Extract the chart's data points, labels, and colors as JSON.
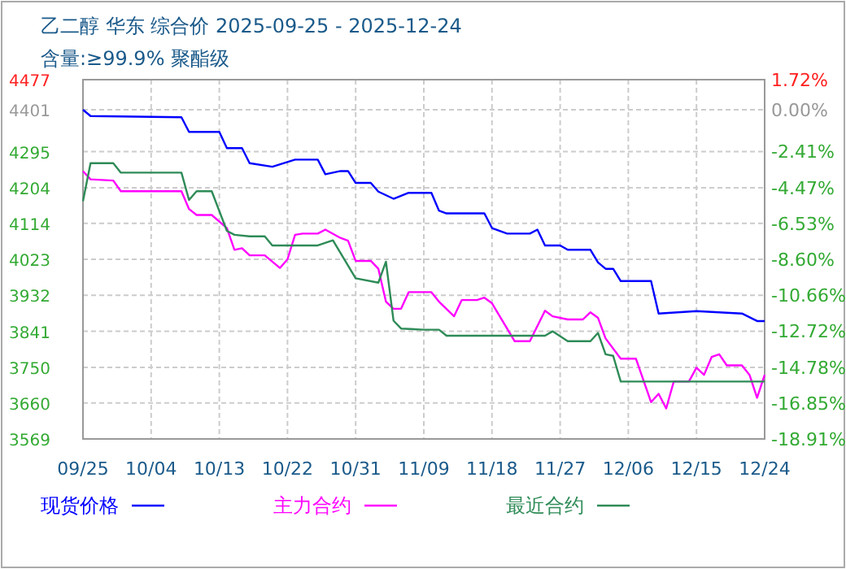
{
  "chart_data": {
    "type": "line",
    "title": "乙二醇 华东 综合价 2025-09-25 - 2025-12-24",
    "subtitle": "含量:≥99.9% 聚酯级",
    "xlim": [
      "2025-09-25",
      "2025-12-24"
    ],
    "xticks": [
      {
        "value": "2025-09-25",
        "label": "09/25"
      },
      {
        "value": "2025-10-04",
        "label": "10/04"
      },
      {
        "value": "2025-10-13",
        "label": "10/13"
      },
      {
        "value": "2025-10-22",
        "label": "10/22"
      },
      {
        "value": "2025-10-31",
        "label": "10/31"
      },
      {
        "value": "2025-11-09",
        "label": "11/09"
      },
      {
        "value": "2025-11-18",
        "label": "11/18"
      },
      {
        "value": "2025-11-27",
        "label": "11/27"
      },
      {
        "value": "2025-12-06",
        "label": "12/06"
      },
      {
        "value": "2025-12-15",
        "label": "12/15"
      },
      {
        "value": "2025-12-24",
        "label": "12/24"
      }
    ],
    "ylim": [
      3569,
      4477
    ],
    "yticks": [
      4477,
      4401,
      4295,
      4204,
      4114,
      4023,
      3932,
      3841,
      3750,
      3660,
      3569
    ],
    "y2lim": [
      -18.91,
      1.72
    ],
    "y2ticks": [
      {
        "value": 1.72,
        "label": "1.72%"
      },
      {
        "value": 0,
        "label": "0.00%"
      },
      {
        "value": -2.41,
        "label": "-2.41%"
      },
      {
        "value": -4.47,
        "label": "-4.47%"
      },
      {
        "value": -6.53,
        "label": "-6.53%"
      },
      {
        "value": -8.6,
        "label": "-8.60%"
      },
      {
        "value": -10.66,
        "label": "-10.66%"
      },
      {
        "value": -12.72,
        "label": "-12.72%"
      },
      {
        "value": -14.78,
        "label": "-14.78%"
      },
      {
        "value": -16.85,
        "label": "-16.85%"
      },
      {
        "value": -18.91,
        "label": "-18.91%"
      }
    ],
    "grid": true,
    "legend": "bottom",
    "series": [
      {
        "name": "现货价格",
        "color": "#0000ff",
        "x": [
          "2025-09-25",
          "2025-09-26",
          "2025-10-08",
          "2025-10-09",
          "2025-10-13",
          "2025-10-14",
          "2025-10-16",
          "2025-10-17",
          "2025-10-20",
          "2025-10-23",
          "2025-10-26",
          "2025-10-27",
          "2025-10-29",
          "2025-10-30",
          "2025-10-31",
          "2025-11-02",
          "2025-11-03",
          "2025-11-05",
          "2025-11-07",
          "2025-11-10",
          "2025-11-11",
          "2025-11-12",
          "2025-11-17",
          "2025-11-18",
          "2025-11-20",
          "2025-11-23",
          "2025-11-24",
          "2025-11-25",
          "2025-11-27",
          "2025-11-28",
          "2025-12-01",
          "2025-12-02",
          "2025-12-03",
          "2025-12-04",
          "2025-12-05",
          "2025-12-09",
          "2025-12-10",
          "2025-12-15",
          "2025-12-21",
          "2025-12-23",
          "2025-12-24"
        ],
        "values": [
          4401,
          4385,
          4382,
          4345,
          4345,
          4304,
          4304,
          4266,
          4257,
          4275,
          4275,
          4238,
          4246,
          4246,
          4216,
          4216,
          4194,
          4176,
          4191,
          4191,
          4146,
          4139,
          4139,
          4102,
          4088,
          4088,
          4098,
          4058,
          4058,
          4047,
          4047,
          4015,
          3999,
          3999,
          3968,
          3968,
          3886,
          3892,
          3886,
          3867,
          3867
        ]
      },
      {
        "name": "主力合约",
        "color": "#ff00ff",
        "x": [
          "2025-09-25",
          "2025-09-26",
          "2025-09-29",
          "2025-09-30",
          "2025-10-08",
          "2025-10-09",
          "2025-10-10",
          "2025-10-12",
          "2025-10-14",
          "2025-10-15",
          "2025-10-16",
          "2025-10-17",
          "2025-10-19",
          "2025-10-21",
          "2025-10-22",
          "2025-10-23",
          "2025-10-24",
          "2025-10-26",
          "2025-10-27",
          "2025-10-29",
          "2025-10-30",
          "2025-10-31",
          "2025-11-02",
          "2025-11-03",
          "2025-11-04",
          "2025-11-05",
          "2025-11-06",
          "2025-11-07",
          "2025-11-10",
          "2025-11-11",
          "2025-11-13",
          "2025-11-14",
          "2025-11-16",
          "2025-11-17",
          "2025-11-18",
          "2025-11-21",
          "2025-11-23",
          "2025-11-25",
          "2025-11-26",
          "2025-11-28",
          "2025-11-30",
          "2025-12-01",
          "2025-12-02",
          "2025-12-03",
          "2025-12-05",
          "2025-12-07",
          "2025-12-09",
          "2025-12-10",
          "2025-12-11",
          "2025-12-12",
          "2025-12-14",
          "2025-12-15",
          "2025-12-16",
          "2025-12-17",
          "2025-12-18",
          "2025-12-19",
          "2025-12-21",
          "2025-12-22",
          "2025-12-23",
          "2025-12-24"
        ],
        "values": [
          4246,
          4225,
          4222,
          4195,
          4195,
          4150,
          4135,
          4135,
          4102,
          4047,
          4051,
          4033,
          4033,
          4001,
          4023,
          4085,
          4088,
          4088,
          4098,
          4077,
          4070,
          4019,
          4019,
          3999,
          3916,
          3898,
          3898,
          3940,
          3940,
          3916,
          3879,
          3920,
          3920,
          3926,
          3912,
          3816,
          3816,
          3893,
          3879,
          3871,
          3871,
          3889,
          3875,
          3823,
          3772,
          3772,
          3662,
          3683,
          3646,
          3714,
          3714,
          3749,
          3731,
          3776,
          3783,
          3755,
          3755,
          3731,
          3673,
          3731
        ]
      },
      {
        "name": "最近合约",
        "color": "#2e8b57",
        "x": [
          "2025-09-25",
          "2025-09-26",
          "2025-09-29",
          "2025-09-30",
          "2025-10-08",
          "2025-10-09",
          "2025-10-10",
          "2025-10-12",
          "2025-10-14",
          "2025-10-15",
          "2025-10-17",
          "2025-10-19",
          "2025-10-20",
          "2025-10-26",
          "2025-10-28",
          "2025-10-31",
          "2025-11-03",
          "2025-11-04",
          "2025-11-05",
          "2025-11-06",
          "2025-11-09",
          "2025-11-11",
          "2025-11-12",
          "2025-11-25",
          "2025-11-26",
          "2025-11-28",
          "2025-12-01",
          "2025-12-02",
          "2025-12-03",
          "2025-12-04",
          "2025-12-05",
          "2025-12-24"
        ],
        "values": [
          4170,
          4266,
          4266,
          4242,
          4242,
          4173,
          4195,
          4195,
          4095,
          4085,
          4081,
          4081,
          4058,
          4058,
          4071,
          3975,
          3964,
          4017,
          3868,
          3848,
          3845,
          3845,
          3830,
          3830,
          3841,
          3816,
          3816,
          3837,
          3783,
          3779,
          3714,
          3714
        ]
      }
    ]
  }
}
